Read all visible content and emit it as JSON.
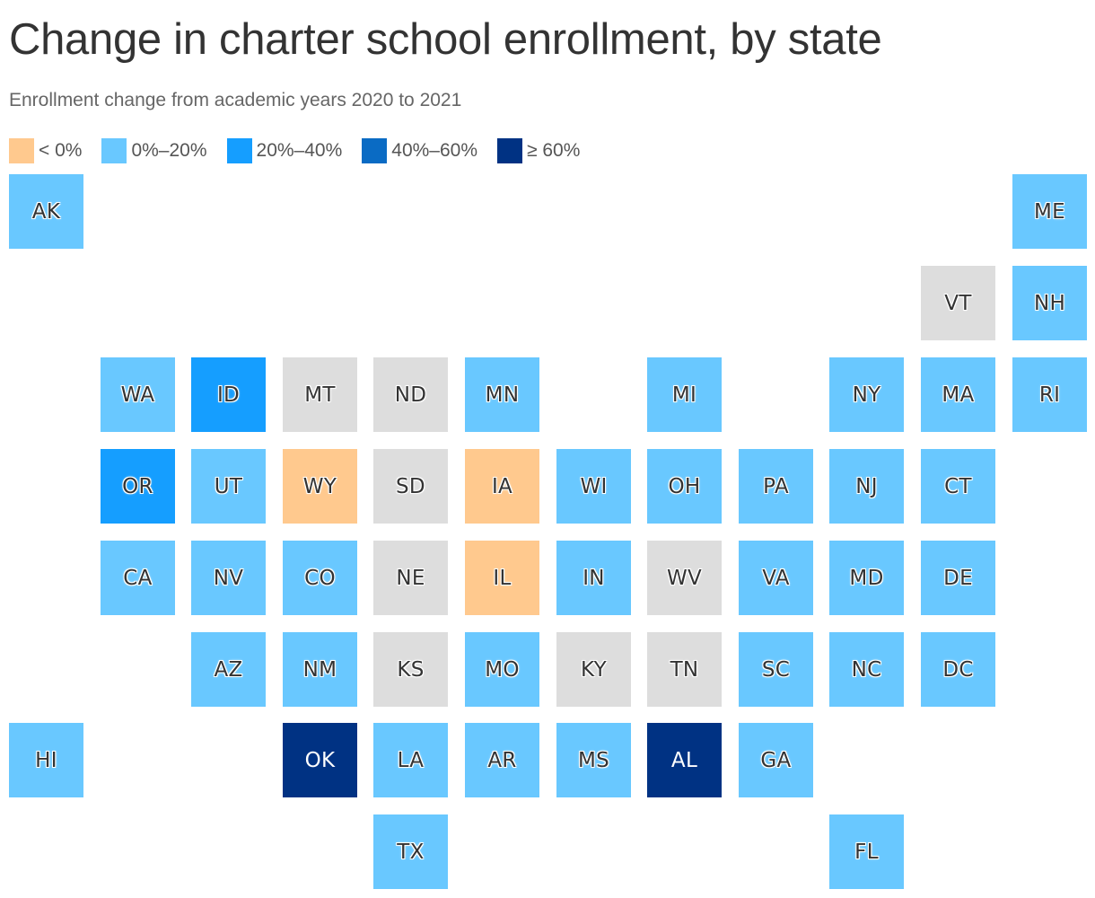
{
  "title": "Change in charter school enrollment, by state",
  "subtitle": "Enrollment change from academic years 2020 to 2021",
  "legend": [
    {
      "label": "< 0%",
      "category": "neg",
      "color": "#ffc98e"
    },
    {
      "label": "0%–20%",
      "category": "c0_20",
      "color": "#69c8ff"
    },
    {
      "label": "20%–40%",
      "category": "c20_40",
      "color": "#159eff"
    },
    {
      "label": "40%–60%",
      "category": "c40_60",
      "color": "#0a6bc4"
    },
    {
      "label": "≥ 60%",
      "category": "c60",
      "color": "#003283"
    }
  ],
  "no_data_color": "#dddddd",
  "states": [
    {
      "abbr": "AK",
      "row": 0,
      "col": 0,
      "category": "c0_20"
    },
    {
      "abbr": "ME",
      "row": 0,
      "col": 11,
      "category": "c0_20"
    },
    {
      "abbr": "VT",
      "row": 1,
      "col": 10,
      "category": "none"
    },
    {
      "abbr": "NH",
      "row": 1,
      "col": 11,
      "category": "c0_20"
    },
    {
      "abbr": "WA",
      "row": 2,
      "col": 1,
      "category": "c0_20"
    },
    {
      "abbr": "ID",
      "row": 2,
      "col": 2,
      "category": "c20_40"
    },
    {
      "abbr": "MT",
      "row": 2,
      "col": 3,
      "category": "none"
    },
    {
      "abbr": "ND",
      "row": 2,
      "col": 4,
      "category": "none"
    },
    {
      "abbr": "MN",
      "row": 2,
      "col": 5,
      "category": "c0_20"
    },
    {
      "abbr": "MI",
      "row": 2,
      "col": 7,
      "category": "c0_20"
    },
    {
      "abbr": "NY",
      "row": 2,
      "col": 9,
      "category": "c0_20"
    },
    {
      "abbr": "MA",
      "row": 2,
      "col": 10,
      "category": "c0_20"
    },
    {
      "abbr": "RI",
      "row": 2,
      "col": 11,
      "category": "c0_20"
    },
    {
      "abbr": "OR",
      "row": 3,
      "col": 1,
      "category": "c20_40"
    },
    {
      "abbr": "UT",
      "row": 3,
      "col": 2,
      "category": "c0_20"
    },
    {
      "abbr": "WY",
      "row": 3,
      "col": 3,
      "category": "neg"
    },
    {
      "abbr": "SD",
      "row": 3,
      "col": 4,
      "category": "none"
    },
    {
      "abbr": "IA",
      "row": 3,
      "col": 5,
      "category": "neg"
    },
    {
      "abbr": "WI",
      "row": 3,
      "col": 6,
      "category": "c0_20"
    },
    {
      "abbr": "OH",
      "row": 3,
      "col": 7,
      "category": "c0_20"
    },
    {
      "abbr": "PA",
      "row": 3,
      "col": 8,
      "category": "c0_20"
    },
    {
      "abbr": "NJ",
      "row": 3,
      "col": 9,
      "category": "c0_20"
    },
    {
      "abbr": "CT",
      "row": 3,
      "col": 10,
      "category": "c0_20"
    },
    {
      "abbr": "CA",
      "row": 4,
      "col": 1,
      "category": "c0_20"
    },
    {
      "abbr": "NV",
      "row": 4,
      "col": 2,
      "category": "c0_20"
    },
    {
      "abbr": "CO",
      "row": 4,
      "col": 3,
      "category": "c0_20"
    },
    {
      "abbr": "NE",
      "row": 4,
      "col": 4,
      "category": "none"
    },
    {
      "abbr": "IL",
      "row": 4,
      "col": 5,
      "category": "neg"
    },
    {
      "abbr": "IN",
      "row": 4,
      "col": 6,
      "category": "c0_20"
    },
    {
      "abbr": "WV",
      "row": 4,
      "col": 7,
      "category": "none"
    },
    {
      "abbr": "VA",
      "row": 4,
      "col": 8,
      "category": "c0_20"
    },
    {
      "abbr": "MD",
      "row": 4,
      "col": 9,
      "category": "c0_20"
    },
    {
      "abbr": "DE",
      "row": 4,
      "col": 10,
      "category": "c0_20"
    },
    {
      "abbr": "AZ",
      "row": 5,
      "col": 2,
      "category": "c0_20"
    },
    {
      "abbr": "NM",
      "row": 5,
      "col": 3,
      "category": "c0_20"
    },
    {
      "abbr": "KS",
      "row": 5,
      "col": 4,
      "category": "none"
    },
    {
      "abbr": "MO",
      "row": 5,
      "col": 5,
      "category": "c0_20"
    },
    {
      "abbr": "KY",
      "row": 5,
      "col": 6,
      "category": "none"
    },
    {
      "abbr": "TN",
      "row": 5,
      "col": 7,
      "category": "none"
    },
    {
      "abbr": "SC",
      "row": 5,
      "col": 8,
      "category": "c0_20"
    },
    {
      "abbr": "NC",
      "row": 5,
      "col": 9,
      "category": "c0_20"
    },
    {
      "abbr": "DC",
      "row": 5,
      "col": 10,
      "category": "c0_20"
    },
    {
      "abbr": "HI",
      "row": 6,
      "col": 0,
      "category": "c0_20"
    },
    {
      "abbr": "OK",
      "row": 6,
      "col": 3,
      "category": "c60"
    },
    {
      "abbr": "LA",
      "row": 6,
      "col": 4,
      "category": "c0_20"
    },
    {
      "abbr": "AR",
      "row": 6,
      "col": 5,
      "category": "c0_20"
    },
    {
      "abbr": "MS",
      "row": 6,
      "col": 6,
      "category": "c0_20"
    },
    {
      "abbr": "AL",
      "row": 6,
      "col": 7,
      "category": "c60"
    },
    {
      "abbr": "GA",
      "row": 6,
      "col": 8,
      "category": "c0_20"
    },
    {
      "abbr": "TX",
      "row": 7,
      "col": 4,
      "category": "c0_20"
    },
    {
      "abbr": "FL",
      "row": 7,
      "col": 9,
      "category": "c0_20"
    }
  ]
}
